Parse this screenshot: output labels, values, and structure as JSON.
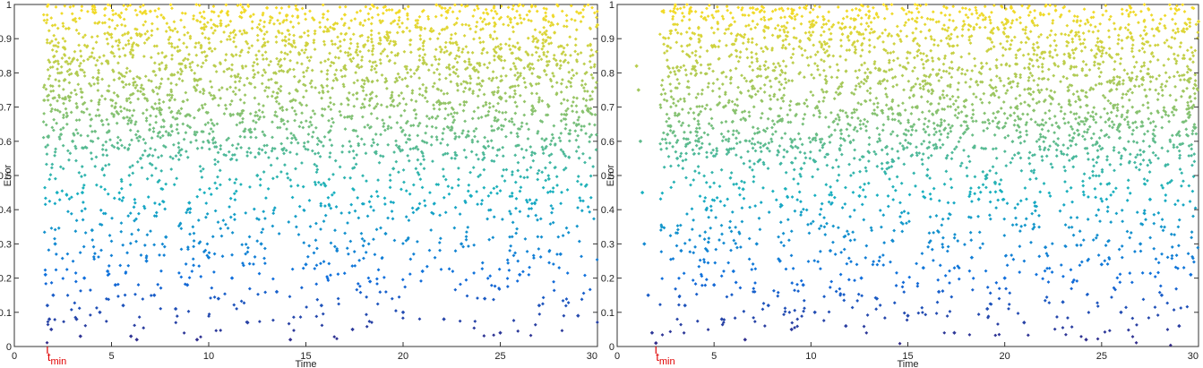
{
  "chart_data": [
    {
      "type": "scatter",
      "title": "",
      "xlabel": "Time",
      "ylabel": "Error",
      "xlim": [
        0,
        30
      ],
      "ylim": [
        0,
        1
      ],
      "xticks": [
        "0",
        "5",
        "10",
        "15",
        "20",
        "25",
        "30"
      ],
      "yticks": [
        "0",
        "0.1",
        "0.2",
        "0.3",
        "0.4",
        "0.5",
        "0.6",
        "0.7",
        "0.8",
        "0.9",
        "1"
      ],
      "grid": false,
      "colormap": "parula",
      "colors": {
        "low": "#352a87",
        "mid_low": "#0f6edd",
        "mid": "#17b0bf",
        "mid_high": "#8fc36a",
        "high": "#f9dc24"
      },
      "annotation": {
        "text": "t",
        "subscript": "min",
        "x": 1.7,
        "color": "#e00000"
      },
      "points": [
        [
          1.6,
          0.21
        ],
        [
          1.7,
          0.12
        ],
        [
          1.8,
          0.08
        ],
        [
          1.9,
          0.05
        ],
        [
          2.0,
          0.15
        ],
        [
          2.1,
          0.3
        ],
        [
          2.2,
          0.45
        ],
        [
          2.4,
          0.62
        ],
        [
          2.6,
          0.78
        ],
        [
          2.8,
          0.93
        ],
        [
          3.0,
          0.6
        ],
        [
          3.2,
          0.08
        ],
        [
          3.4,
          0.03
        ],
        [
          3.6,
          0.2
        ],
        [
          4.0,
          0.34
        ],
        [
          4.4,
          0.1
        ],
        [
          4.8,
          0.22
        ],
        [
          5.2,
          0.18
        ],
        [
          5.6,
          0.12
        ],
        [
          6.0,
          0.03
        ],
        [
          6.3,
          0.02
        ],
        [
          6.8,
          0.25
        ],
        [
          7.2,
          0.15
        ],
        [
          7.8,
          0.32
        ],
        [
          8.3,
          0.11
        ],
        [
          8.9,
          0.18
        ],
        [
          9.4,
          0.02
        ],
        [
          10.0,
          0.26
        ],
        [
          10.5,
          0.14
        ],
        [
          11.2,
          0.2
        ],
        [
          12.0,
          0.07
        ],
        [
          12.7,
          0.3
        ],
        [
          13.5,
          0.16
        ],
        [
          14.2,
          0.02
        ],
        [
          15.0,
          0.24
        ],
        [
          15.8,
          0.12
        ],
        [
          16.6,
          0.28
        ],
        [
          17.4,
          0.05
        ],
        [
          18.3,
          0.19
        ],
        [
          19.1,
          0.33
        ],
        [
          20.0,
          0.1
        ],
        [
          21.0,
          0.22
        ],
        [
          22.1,
          0.08
        ],
        [
          23.0,
          0.3
        ],
        [
          24.2,
          0.14
        ],
        [
          25.0,
          0.04
        ],
        [
          26.0,
          0.21
        ],
        [
          27.0,
          0.12
        ],
        [
          28.1,
          0.27
        ],
        [
          29.0,
          0.09
        ],
        [
          3.5,
          0.45
        ],
        [
          6.5,
          0.55
        ],
        [
          9.0,
          0.42
        ],
        [
          12.5,
          0.5
        ],
        [
          16.0,
          0.47
        ],
        [
          19.5,
          0.52
        ],
        [
          23.5,
          0.44
        ],
        [
          27.5,
          0.49
        ],
        [
          4.5,
          0.66
        ],
        [
          8.0,
          0.72
        ],
        [
          11.5,
          0.68
        ],
        [
          14.5,
          0.75
        ],
        [
          18.0,
          0.7
        ],
        [
          21.5,
          0.67
        ],
        [
          25.5,
          0.73
        ],
        [
          29.5,
          0.69
        ],
        [
          5.0,
          0.86
        ],
        [
          10.0,
          0.9
        ],
        [
          15.0,
          0.88
        ],
        [
          20.0,
          0.92
        ],
        [
          25.0,
          0.87
        ],
        [
          30.0,
          0.94
        ],
        [
          7.0,
          0.98
        ],
        [
          13.0,
          0.99
        ],
        [
          17.0,
          0.97
        ],
        [
          22.0,
          0.99
        ],
        [
          26.5,
          0.98
        ]
      ]
    },
    {
      "type": "scatter",
      "title": "",
      "xlabel": "Time",
      "ylabel": "Error",
      "xlim": [
        0,
        30
      ],
      "ylim": [
        0,
        1
      ],
      "xticks": [
        "0",
        "5",
        "10",
        "15",
        "20",
        "25",
        "30"
      ],
      "yticks": [
        "0",
        "0.1",
        "0.2",
        "0.3",
        "0.4",
        "0.5",
        "0.6",
        "0.7",
        "0.8",
        "0.9",
        "1"
      ],
      "grid": false,
      "colormap": "parula",
      "colors": {
        "low": "#352a87",
        "mid_low": "#0f6edd",
        "mid": "#17b0bf",
        "mid_high": "#8fc36a",
        "high": "#f9dc24"
      },
      "annotation": {
        "text": "t",
        "subscript": "min",
        "x": 2.0,
        "color": "#e00000"
      },
      "points": [
        [
          1.0,
          0.82
        ],
        [
          1.1,
          0.75
        ],
        [
          1.2,
          0.6
        ],
        [
          1.3,
          0.45
        ],
        [
          1.4,
          0.3
        ],
        [
          1.6,
          0.15
        ],
        [
          1.8,
          0.04
        ],
        [
          2.0,
          0.01
        ],
        [
          2.3,
          0.35
        ],
        [
          2.6,
          0.62
        ],
        [
          2.9,
          0.98
        ],
        [
          3.1,
          0.55
        ],
        [
          3.3,
          0.28
        ],
        [
          3.5,
          0.12
        ],
        [
          3.8,
          0.9
        ],
        [
          4.2,
          0.65
        ],
        [
          4.6,
          0.4
        ],
        [
          5.0,
          0.18
        ],
        [
          5.4,
          0.08
        ],
        [
          6.0,
          0.22
        ],
        [
          6.6,
          0.02
        ],
        [
          7.2,
          0.3
        ],
        [
          7.8,
          0.12
        ],
        [
          8.4,
          0.25
        ],
        [
          9.0,
          0.05
        ],
        [
          9.6,
          0.18
        ],
        [
          10.2,
          0.1
        ],
        [
          11.0,
          0.28
        ],
        [
          11.8,
          0.06
        ],
        [
          12.6,
          0.2
        ],
        [
          13.4,
          0.14
        ],
        [
          14.2,
          0.31
        ],
        [
          15.0,
          0.09
        ],
        [
          15.8,
          0.23
        ],
        [
          16.6,
          0.16
        ],
        [
          17.4,
          0.04
        ],
        [
          18.3,
          0.26
        ],
        [
          19.1,
          0.11
        ],
        [
          20.0,
          0.2
        ],
        [
          21.0,
          0.07
        ],
        [
          22.1,
          0.29
        ],
        [
          23.0,
          0.13
        ],
        [
          24.2,
          0.02
        ],
        [
          25.0,
          0.24
        ],
        [
          26.0,
          0.1
        ],
        [
          27.0,
          0.3
        ],
        [
          28.1,
          0.15
        ],
        [
          29.0,
          0.06
        ],
        [
          29.6,
          0.21
        ],
        [
          6.5,
          0.46
        ],
        [
          9.5,
          0.52
        ],
        [
          12.5,
          0.44
        ],
        [
          16.0,
          0.5
        ],
        [
          19.5,
          0.48
        ],
        [
          23.5,
          0.55
        ],
        [
          27.5,
          0.43
        ],
        [
          5.5,
          0.7
        ],
        [
          8.5,
          0.66
        ],
        [
          11.5,
          0.74
        ],
        [
          14.5,
          0.68
        ],
        [
          18.0,
          0.72
        ],
        [
          21.5,
          0.69
        ],
        [
          25.5,
          0.75
        ],
        [
          29.5,
          0.67
        ],
        [
          5.0,
          0.88
        ],
        [
          10.0,
          0.91
        ],
        [
          15.0,
          0.86
        ],
        [
          20.0,
          0.93
        ],
        [
          25.0,
          0.89
        ],
        [
          30.0,
          0.95
        ],
        [
          7.0,
          0.99
        ],
        [
          13.0,
          0.98
        ],
        [
          17.0,
          0.99
        ],
        [
          22.0,
          0.97
        ],
        [
          26.5,
          0.99
        ]
      ]
    }
  ]
}
